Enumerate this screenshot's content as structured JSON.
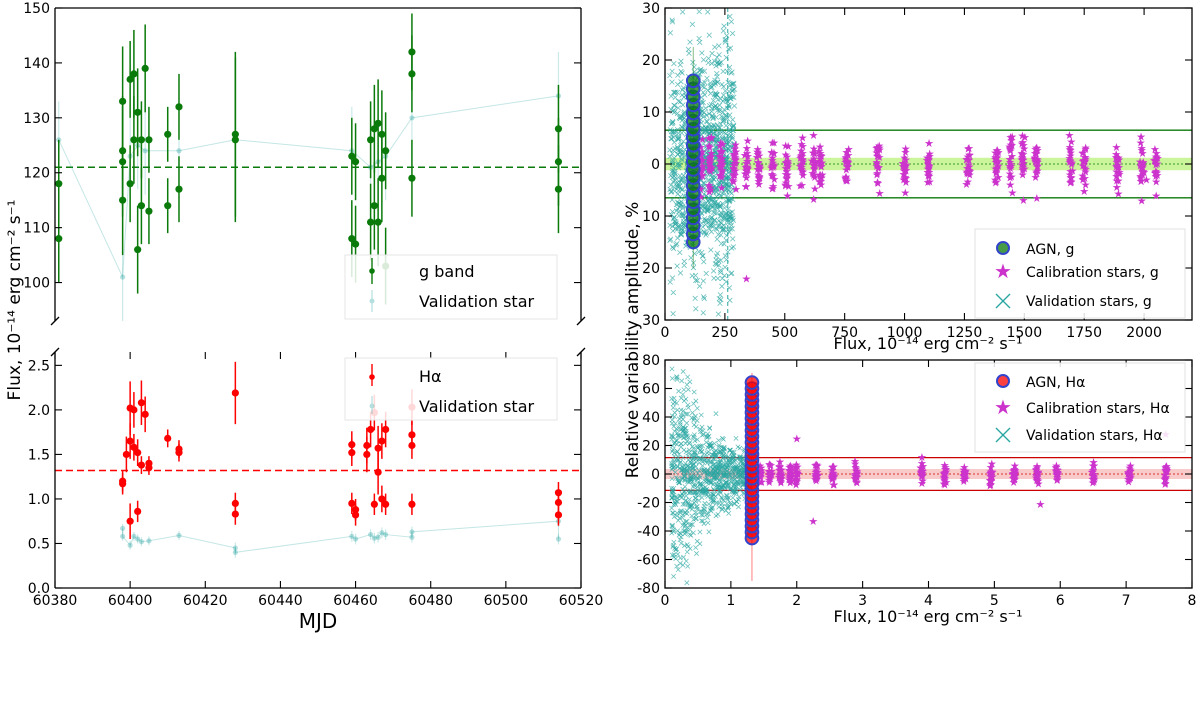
{
  "figure": {
    "shared_ylabel": "Flux, 10⁻¹⁴ erg cm⁻² s⁻¹",
    "right_shared_ylabel": "Relative variability amplitude, %"
  },
  "colors": {
    "g_band": "#0a7a0a",
    "halpha": "#ff0000",
    "validation": "#2aa6a2",
    "calibration": "#cc33cc",
    "agn_edge": "#3344cc",
    "green_band_fill": "#b8f27a",
    "red_band_fill": "#f7b8b8"
  },
  "chart_data": [
    {
      "type": "scatter",
      "panel": "top-left",
      "xlabel": "",
      "ylabel": "",
      "xlim": [
        60380,
        60520
      ],
      "ylim": [
        93,
        150
      ],
      "yticks": [
        100,
        110,
        120,
        130,
        140,
        150
      ],
      "legend_position": "lower-right",
      "mean_line": 121,
      "series": [
        {
          "name": "g band",
          "x": [
            60381,
            60381,
            60398,
            60398,
            60398,
            60398,
            60400,
            60400,
            60401,
            60401,
            60402,
            60402,
            60403,
            60403,
            60404,
            60405,
            60405,
            60410,
            60410,
            60413,
            60413,
            60428,
            60428,
            60459,
            60459,
            60460,
            60460,
            60464,
            60464,
            60465,
            60465,
            60466,
            60466,
            60467,
            60467,
            60468,
            60468,
            60475,
            60475,
            60475,
            60514,
            60514,
            60514
          ],
          "y": [
            118,
            108,
            133,
            124,
            122,
            115,
            137,
            118,
            138,
            126,
            131,
            106,
            126,
            114,
            139,
            126,
            113,
            127,
            114,
            132,
            117,
            127,
            126,
            123,
            108,
            122,
            107,
            126,
            111,
            128,
            114,
            129,
            111,
            127,
            119,
            124,
            103,
            142,
            138,
            119,
            128,
            122,
            117
          ],
          "err": [
            8,
            8,
            10,
            10,
            10,
            10,
            7,
            7,
            8,
            8,
            8,
            8,
            7,
            7,
            8,
            6,
            6,
            5,
            5,
            6,
            6,
            15,
            15,
            7,
            7,
            7,
            7,
            7,
            7,
            8,
            8,
            8,
            8,
            8,
            8,
            7,
            7,
            7,
            7,
            7,
            8,
            8,
            8
          ]
        },
        {
          "name": "Validation star",
          "x": [
            60381,
            60398,
            60400,
            60402,
            60404,
            60413,
            60428,
            60459,
            60464,
            60466,
            60468,
            60475,
            60514
          ],
          "y": [
            126,
            101,
            123,
            125,
            124,
            124,
            126,
            124,
            121,
            122,
            123,
            130,
            134
          ],
          "err": [
            7,
            9,
            8,
            8,
            8,
            7,
            10,
            8,
            8,
            8,
            8,
            8,
            8
          ]
        }
      ]
    },
    {
      "type": "scatter",
      "panel": "bottom-left",
      "xlabel": "MJD",
      "ylabel": "",
      "xlim": [
        60380,
        60520
      ],
      "xticks": [
        60380,
        60400,
        60420,
        60440,
        60460,
        60480,
        60500,
        60520
      ],
      "ylim": [
        0.0,
        2.65
      ],
      "yticks": [
        0.0,
        0.5,
        1.0,
        1.5,
        2.0,
        2.5
      ],
      "legend_position": "upper-right",
      "mean_line": 1.32,
      "series": [
        {
          "name": "Hα",
          "x": [
            60398,
            60398,
            60399,
            60400,
            60400,
            60400,
            60401,
            60401,
            60402,
            60402,
            60403,
            60403,
            60404,
            60405,
            60405,
            60410,
            60413,
            60413,
            60428,
            60428,
            60428,
            60459,
            60459,
            60459,
            60460,
            60460,
            60463,
            60463,
            60464,
            60465,
            60465,
            60466,
            60466,
            60467,
            60467,
            60468,
            60468,
            60475,
            60475,
            60475,
            60475,
            60514,
            60514,
            60514
          ],
          "y": [
            1.2,
            1.17,
            1.5,
            2.02,
            1.65,
            0.75,
            2.0,
            1.58,
            1.52,
            0.86,
            2.08,
            1.38,
            1.95,
            1.4,
            1.35,
            1.68,
            1.56,
            1.52,
            2.19,
            0.95,
            0.83,
            1.61,
            1.52,
            0.95,
            0.88,
            0.82,
            1.6,
            1.5,
            1.78,
            1.97,
            0.94,
            1.57,
            1.3,
            1.65,
            1.0,
            1.78,
            0.94,
            2.03,
            1.72,
            1.6,
            0.94,
            1.07,
            0.96,
            0.82
          ],
          "err": [
            0.12,
            0.12,
            0.2,
            0.3,
            0.2,
            0.2,
            0.2,
            0.15,
            0.15,
            0.12,
            0.25,
            0.1,
            0.2,
            0.08,
            0.08,
            0.1,
            0.1,
            0.1,
            0.35,
            0.12,
            0.12,
            0.15,
            0.15,
            0.12,
            0.12,
            0.12,
            0.2,
            0.2,
            0.2,
            0.2,
            0.12,
            0.25,
            0.25,
            0.2,
            0.15,
            0.2,
            0.12,
            0.2,
            0.15,
            0.15,
            0.12,
            0.12,
            0.12,
            0.12
          ]
        },
        {
          "name": "Validation star",
          "x": [
            60398,
            60398,
            60400,
            60401,
            60402,
            60403,
            60405,
            60413,
            60428,
            60428,
            60459,
            60460,
            60464,
            60465,
            60466,
            60467,
            60468,
            60475,
            60475,
            60514,
            60514
          ],
          "y": [
            0.67,
            0.58,
            0.48,
            0.58,
            0.55,
            0.52,
            0.53,
            0.59,
            0.45,
            0.4,
            0.58,
            0.55,
            0.6,
            0.56,
            0.57,
            0.62,
            0.6,
            0.57,
            0.63,
            0.75,
            0.55
          ],
          "err": [
            0.05,
            0.05,
            0.05,
            0.05,
            0.05,
            0.05,
            0.05,
            0.05,
            0.06,
            0.06,
            0.06,
            0.06,
            0.06,
            0.06,
            0.06,
            0.06,
            0.06,
            0.06,
            0.06,
            0.06,
            0.06
          ]
        }
      ]
    },
    {
      "type": "scatter",
      "panel": "top-right",
      "xlabel": "Flux, 10⁻¹⁴ erg cm⁻² s⁻¹",
      "ylabel": "",
      "xlim": [
        0,
        2200
      ],
      "xticks": [
        0,
        250,
        500,
        750,
        1000,
        1250,
        1500,
        1750,
        2000
      ],
      "ylim": [
        -30,
        30
      ],
      "yticks": [
        -30,
        -20,
        -10,
        0,
        10,
        20,
        30
      ],
      "ytick_labels": [
        "30",
        "20",
        "10",
        "0",
        "10",
        "20",
        "30"
      ],
      "legend_position": "lower-right",
      "band_sigma": 1.2,
      "threshold_lines": [
        6.5,
        -6.5
      ],
      "agn_flux": 118,
      "vertical_line_flux": 262,
      "series": [
        {
          "name": "AGN, g",
          "x_center": 118,
          "y_min": -15,
          "y_max": 17.5
        },
        {
          "name": "Calibration stars, g",
          "x_groups": [
            150,
            190,
            235,
            290,
            340,
            390,
            450,
            510,
            570,
            620,
            650,
            760,
            890,
            1000,
            1100,
            1265,
            1385,
            1445,
            1495,
            1550,
            1695,
            1750,
            1890,
            1990,
            2050
          ],
          "y_spread": 3.5
        },
        {
          "name": "Validation stars, g",
          "x_range": [
            20,
            290
          ],
          "y_range": [
            -30,
            30
          ]
        }
      ]
    },
    {
      "type": "scatter",
      "panel": "bottom-right",
      "xlabel": "Flux, 10⁻¹⁴ erg cm⁻² s⁻¹",
      "ylabel": "",
      "xlim": [
        0,
        8
      ],
      "xticks": [
        0,
        1,
        2,
        3,
        4,
        5,
        6,
        7,
        8
      ],
      "ylim": [
        -80,
        80
      ],
      "yticks": [
        -80,
        -60,
        -40,
        -20,
        0,
        20,
        40,
        60,
        80
      ],
      "legend_position": "upper-right",
      "band_sigma": 3.5,
      "threshold_lines": [
        11.5,
        -11.5
      ],
      "agn_flux": 1.32,
      "series": [
        {
          "name": "AGN, Hα",
          "x_center": 1.32,
          "y_min": -45,
          "y_max": 66
        },
        {
          "name": "Calibration stars, Hα",
          "x_groups": [
            1.45,
            1.6,
            1.75,
            1.9,
            2.0,
            2.3,
            2.55,
            2.9,
            3.9,
            4.25,
            4.55,
            4.95,
            5.3,
            5.65,
            5.95,
            6.5,
            7.05,
            7.6
          ],
          "y_spread": 5
        },
        {
          "name": "Validation stars, Hα",
          "x_range": [
            0.1,
            1.3
          ],
          "y_range": [
            -80,
            78
          ]
        }
      ]
    }
  ]
}
